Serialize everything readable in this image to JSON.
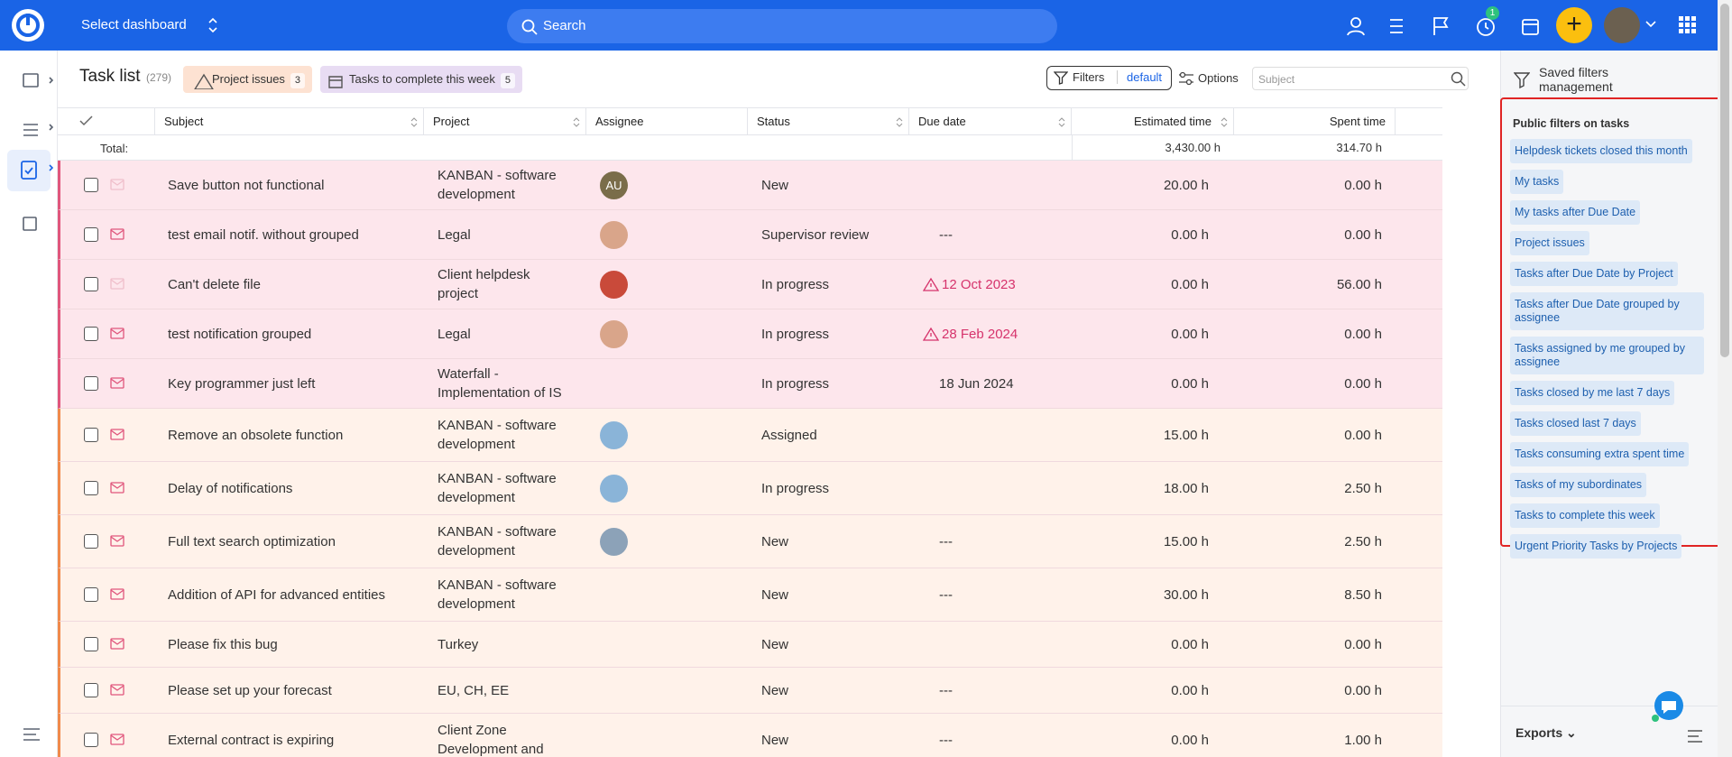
{
  "header": {
    "dashboard": "Select dashboard",
    "search": "Search",
    "timer_badge": "1"
  },
  "toolbar": {
    "title": "Task list",
    "count": "(279)",
    "tags": [
      {
        "label": "Project issues",
        "count": "3"
      },
      {
        "label": "Tasks to complete this week",
        "count": "5"
      }
    ],
    "filters": "Filters",
    "filter_name": "default",
    "options": "Options",
    "subject_placeholder": "Subject"
  },
  "table": {
    "columns": [
      "Subject",
      "Project",
      "Assignee",
      "Status",
      "Due date",
      "Estimated time",
      "Spent time"
    ],
    "total_label": "Total:",
    "totals": {
      "estimated": "3,430.00 h",
      "spent": "314.70 h"
    },
    "rows": [
      {
        "subject": "Save button not functional",
        "project": "KANBAN - software development",
        "assignee": "AU",
        "status": "New",
        "estimated": "20.00 h",
        "spent": "0.00 h"
      },
      {
        "subject": "test email notif. without grouped",
        "project": "Legal",
        "status": "Supervisor review",
        "due": "---",
        "estimated": "0.00 h",
        "spent": "0.00 h"
      },
      {
        "subject": "Can't delete file",
        "project": "Client helpdesk project",
        "status": "In progress",
        "due": "12 Oct 2023",
        "estimated": "0.00 h",
        "spent": "56.00 h"
      },
      {
        "subject": "test notification grouped",
        "project": "Legal",
        "status": "In progress",
        "due": "28 Feb 2024",
        "estimated": "0.00 h",
        "spent": "0.00 h"
      },
      {
        "subject": "Key programmer just left",
        "project": "Waterfall - Implementation of IS",
        "status": "In progress",
        "due": "18 Jun 2024",
        "estimated": "0.00 h",
        "spent": "0.00 h"
      },
      {
        "subject": "Remove an obsolete function",
        "project": "KANBAN - software development",
        "status": "Assigned",
        "estimated": "15.00 h",
        "spent": "0.00 h"
      },
      {
        "subject": "Delay of notifications",
        "project": "KANBAN - software development",
        "status": "In progress",
        "estimated": "18.00 h",
        "spent": "2.50 h"
      },
      {
        "subject": "Full text search optimization",
        "project": "KANBAN - software development",
        "status": "New",
        "due": "---",
        "estimated": "15.00 h",
        "spent": "2.50 h"
      },
      {
        "subject": "Addition of API for advanced entities",
        "project": "KANBAN - software development",
        "status": "New",
        "due": "---",
        "estimated": "30.00 h",
        "spent": "8.50 h"
      },
      {
        "subject": "Please fix this bug",
        "project": "Turkey",
        "status": "New",
        "estimated": "0.00 h",
        "spent": "0.00 h"
      },
      {
        "subject": "Please set up your forecast",
        "project": "EU, CH, EE",
        "status": "New",
        "due": "---",
        "estimated": "0.00 h",
        "spent": "0.00 h"
      },
      {
        "subject": "External contract is expiring",
        "project": "Client Zone Development and",
        "status": "New",
        "due": "---",
        "estimated": "0.00 h",
        "spent": "1.00 h"
      }
    ]
  },
  "sidebar": {
    "title": "Saved filters management",
    "section": "Public filters on tasks",
    "filters": [
      "Helpdesk tickets closed this month",
      "My tasks",
      "My tasks after Due Date",
      "Project issues",
      "Tasks after Due Date by Project",
      "Tasks after Due Date grouped by assignee",
      "Tasks assigned by me grouped by assignee",
      "Tasks closed by me last 7 days",
      "Tasks closed last 7 days",
      "Tasks consuming extra spent time",
      "Tasks of my subordinates",
      "Tasks to complete this week",
      "Urgent Priority Tasks by Projects"
    ],
    "exports": "Exports"
  }
}
